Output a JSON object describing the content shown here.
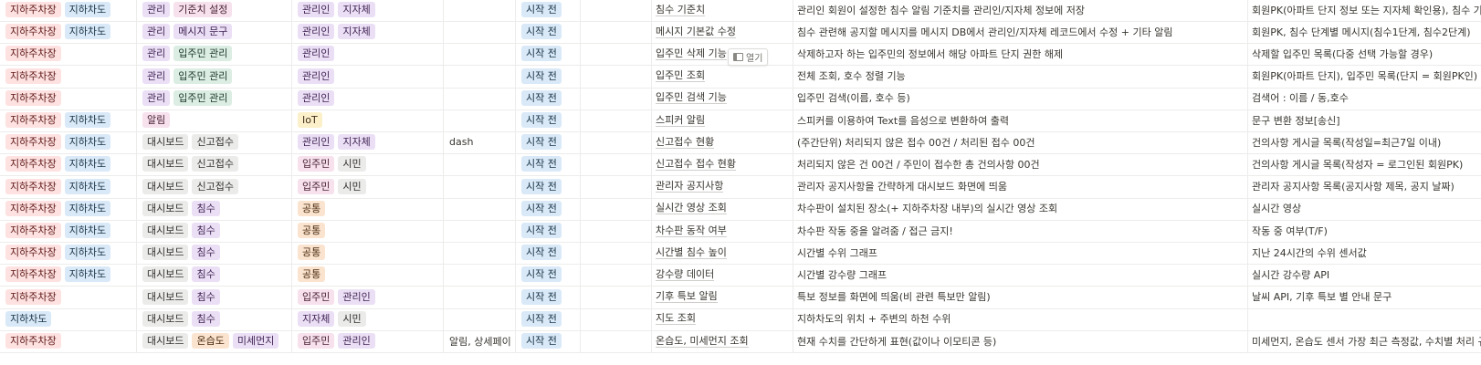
{
  "open_button_label": "열기",
  "rows": [
    {
      "location": [
        {
          "text": "지하주차장",
          "color": "red"
        },
        {
          "text": "지하차도",
          "color": "blue"
        }
      ],
      "category": [
        {
          "text": "관리",
          "color": "purple"
        },
        {
          "text": "기준치 설정",
          "color": "pink"
        }
      ],
      "user": [
        {
          "text": "관리인",
          "color": "purple"
        },
        {
          "text": "지자체",
          "color": "purple"
        }
      ],
      "page": "",
      "status": "시작 전",
      "title": "침수 기준치",
      "description": "관리인 회원이 설정한 침수 알림 기준치를 관리인/지자체 정보에 저장",
      "data": "회원PK(아파트 단지 정보 또는 지자체 확인용), 침수 기"
    },
    {
      "location": [
        {
          "text": "지하주차장",
          "color": "red"
        },
        {
          "text": "지하차도",
          "color": "blue"
        }
      ],
      "category": [
        {
          "text": "관리",
          "color": "purple"
        },
        {
          "text": "메시지 문구",
          "color": "purple"
        }
      ],
      "user": [
        {
          "text": "관리인",
          "color": "purple"
        },
        {
          "text": "지자체",
          "color": "purple"
        }
      ],
      "page": "",
      "status": "시작 전",
      "title": "메시지 기본값 수정",
      "description": "침수 관련해 공지할 메시지를 메시지 DB에서 관리인/지자체 레코드에서 수정 + 기타 알림",
      "data": "회원PK, 침수 단계별 메시지(침수1단계, 침수2단계)"
    },
    {
      "location": [
        {
          "text": "지하주차장",
          "color": "red"
        }
      ],
      "category": [
        {
          "text": "관리",
          "color": "purple"
        },
        {
          "text": "입주민 관리",
          "color": "green"
        }
      ],
      "user": [
        {
          "text": "관리인",
          "color": "purple"
        }
      ],
      "page": "",
      "status": "시작 전",
      "title": "입주민 삭제 기능",
      "description": "삭제하고자 하는 입주민의 정보에서 해당 아파트 단지 권한 해제",
      "data": "삭제할 입주민 목록(다중 선택 가능할 경우)"
    },
    {
      "location": [
        {
          "text": "지하주차장",
          "color": "red"
        }
      ],
      "category": [
        {
          "text": "관리",
          "color": "purple"
        },
        {
          "text": "입주민 관리",
          "color": "green"
        }
      ],
      "user": [
        {
          "text": "관리인",
          "color": "purple"
        }
      ],
      "page": "",
      "status": "시작 전",
      "title": "입주민 조회",
      "description": "전체 조회, 호수 정렬 기능",
      "data": "회원PK(아파트 단지), 입주민 목록(단지 = 회원PK인)"
    },
    {
      "location": [
        {
          "text": "지하주차장",
          "color": "red"
        }
      ],
      "category": [
        {
          "text": "관리",
          "color": "purple"
        },
        {
          "text": "입주민 관리",
          "color": "green"
        }
      ],
      "user": [
        {
          "text": "관리인",
          "color": "purple"
        }
      ],
      "page": "",
      "status": "시작 전",
      "title": "입주민 검색 기능",
      "description": "입주민 검색(이름, 호수 등)",
      "data": "검색어 : 이름 / 동,호수"
    },
    {
      "location": [
        {
          "text": "지하주차장",
          "color": "red"
        },
        {
          "text": "지하차도",
          "color": "blue"
        }
      ],
      "category": [
        {
          "text": "알림",
          "color": "pink"
        }
      ],
      "user": [
        {
          "text": "IoT",
          "color": "yellow"
        }
      ],
      "page": "",
      "status": "시작 전",
      "title": "스피커 알림",
      "description": "스피커를 이용하여 Text를 음성으로 변환하여 출력",
      "data": "문구 변환 정보[송신]"
    },
    {
      "location": [
        {
          "text": "지하주차장",
          "color": "red"
        },
        {
          "text": "지하차도",
          "color": "blue"
        }
      ],
      "category": [
        {
          "text": "대시보드",
          "color": "gray"
        },
        {
          "text": "신고접수",
          "color": "gray"
        }
      ],
      "user": [
        {
          "text": "관리인",
          "color": "purple"
        },
        {
          "text": "지자체",
          "color": "purple"
        }
      ],
      "page": "dash",
      "status": "시작 전",
      "title": "신고접수 현황",
      "description": "(주간단위) 처리되지 않은 접수 00건 / 처리된 접수 00건",
      "data": "건의사항 게시글 목록(작성일=최근7일 이내)"
    },
    {
      "location": [
        {
          "text": "지하주차장",
          "color": "red"
        },
        {
          "text": "지하차도",
          "color": "blue"
        }
      ],
      "category": [
        {
          "text": "대시보드",
          "color": "gray"
        },
        {
          "text": "신고접수",
          "color": "gray"
        }
      ],
      "user": [
        {
          "text": "입주민",
          "color": "pink"
        },
        {
          "text": "시민",
          "color": "gray"
        }
      ],
      "page": "",
      "status": "시작 전",
      "title": "신고접수 접수 현황",
      "description": "처리되지 않은 건 00건 / 주민이 접수한 총 건의사항 00건",
      "data": "건의사항 게시글 목록(작성자 = 로그인된 회원PK)"
    },
    {
      "location": [
        {
          "text": "지하주차장",
          "color": "red"
        },
        {
          "text": "지하차도",
          "color": "blue"
        }
      ],
      "category": [
        {
          "text": "대시보드",
          "color": "gray"
        },
        {
          "text": "신고접수",
          "color": "gray"
        }
      ],
      "user": [
        {
          "text": "입주민",
          "color": "pink"
        },
        {
          "text": "시민",
          "color": "gray"
        }
      ],
      "page": "",
      "status": "시작 전",
      "title": "관리자 공지사항",
      "description": "관리자 공지사항을 간략하게 대시보드 화면에 띄움",
      "data": "관리자 공지사항 목록(공지사항 제목, 공지 날짜)"
    },
    {
      "location": [
        {
          "text": "지하주차장",
          "color": "red"
        },
        {
          "text": "지하차도",
          "color": "blue"
        }
      ],
      "category": [
        {
          "text": "대시보드",
          "color": "gray"
        },
        {
          "text": "침수",
          "color": "purple"
        }
      ],
      "user": [
        {
          "text": "공통",
          "color": "orange"
        }
      ],
      "page": "",
      "status": "시작 전",
      "title": "실시간 영상 조회",
      "description": "차수판이 설치된 장소(+ 지하주차장 내부)의 실시간 영상 조회",
      "data": "실시간 영상"
    },
    {
      "location": [
        {
          "text": "지하주차장",
          "color": "red"
        },
        {
          "text": "지하차도",
          "color": "blue"
        }
      ],
      "category": [
        {
          "text": "대시보드",
          "color": "gray"
        },
        {
          "text": "침수",
          "color": "purple"
        }
      ],
      "user": [
        {
          "text": "공통",
          "color": "orange"
        }
      ],
      "page": "",
      "status": "시작 전",
      "title": "차수판 동작 여부",
      "description": "차수판 작동 중을 알려줌 / 접근 금지!",
      "data": "작동 중 여부(T/F)"
    },
    {
      "location": [
        {
          "text": "지하주차장",
          "color": "red"
        },
        {
          "text": "지하차도",
          "color": "blue"
        }
      ],
      "category": [
        {
          "text": "대시보드",
          "color": "gray"
        },
        {
          "text": "침수",
          "color": "purple"
        }
      ],
      "user": [
        {
          "text": "공통",
          "color": "orange"
        }
      ],
      "page": "",
      "status": "시작 전",
      "title": "시간별 침수 높이",
      "description": "시간별 수위 그래프",
      "data": "지난 24시간의 수위 센서값"
    },
    {
      "location": [
        {
          "text": "지하주차장",
          "color": "red"
        },
        {
          "text": "지하차도",
          "color": "blue"
        }
      ],
      "category": [
        {
          "text": "대시보드",
          "color": "gray"
        },
        {
          "text": "침수",
          "color": "purple"
        }
      ],
      "user": [
        {
          "text": "공통",
          "color": "orange"
        }
      ],
      "page": "",
      "status": "시작 전",
      "title": "강수량 데이터",
      "description": "시간별 강수량 그래프",
      "data": "실시간 강수량 API"
    },
    {
      "location": [
        {
          "text": "지하주차장",
          "color": "red"
        }
      ],
      "category": [
        {
          "text": "대시보드",
          "color": "gray"
        },
        {
          "text": "침수",
          "color": "purple"
        }
      ],
      "user": [
        {
          "text": "입주민",
          "color": "pink"
        },
        {
          "text": "관리인",
          "color": "purple"
        }
      ],
      "page": "",
      "status": "시작 전",
      "title": "기후 특보 알림",
      "description": "특보 정보를 화면에 띄움(비 관련 특보만 알림)",
      "data": "날씨 API, 기후 특보 별 안내 문구"
    },
    {
      "location": [
        {
          "text": "지하차도",
          "color": "blue"
        }
      ],
      "category": [
        {
          "text": "대시보드",
          "color": "gray"
        },
        {
          "text": "침수",
          "color": "purple"
        }
      ],
      "user": [
        {
          "text": "지자체",
          "color": "purple"
        },
        {
          "text": "시민",
          "color": "gray"
        }
      ],
      "page": "",
      "status": "시작 전",
      "title": "지도 조회",
      "description": "지하차도의 위치 + 주변의 하천 수위",
      "data": ""
    },
    {
      "location": [
        {
          "text": "지하주차장",
          "color": "red"
        }
      ],
      "category": [
        {
          "text": "대시보드",
          "color": "gray"
        },
        {
          "text": "온습도",
          "color": "orange"
        },
        {
          "text": "미세먼지",
          "color": "purple"
        }
      ],
      "user": [
        {
          "text": "입주민",
          "color": "pink"
        },
        {
          "text": "관리인",
          "color": "purple"
        }
      ],
      "page": "알림, 상세페이",
      "status": "시작 전",
      "title": "온습도, 미세먼지 조회",
      "description": "현재 수치를 간단하게 표현(값이나 이모티콘 등)",
      "data": "미세먼지, 온습도 센서 가장 최근 측정값, 수치별 처리 규"
    }
  ]
}
